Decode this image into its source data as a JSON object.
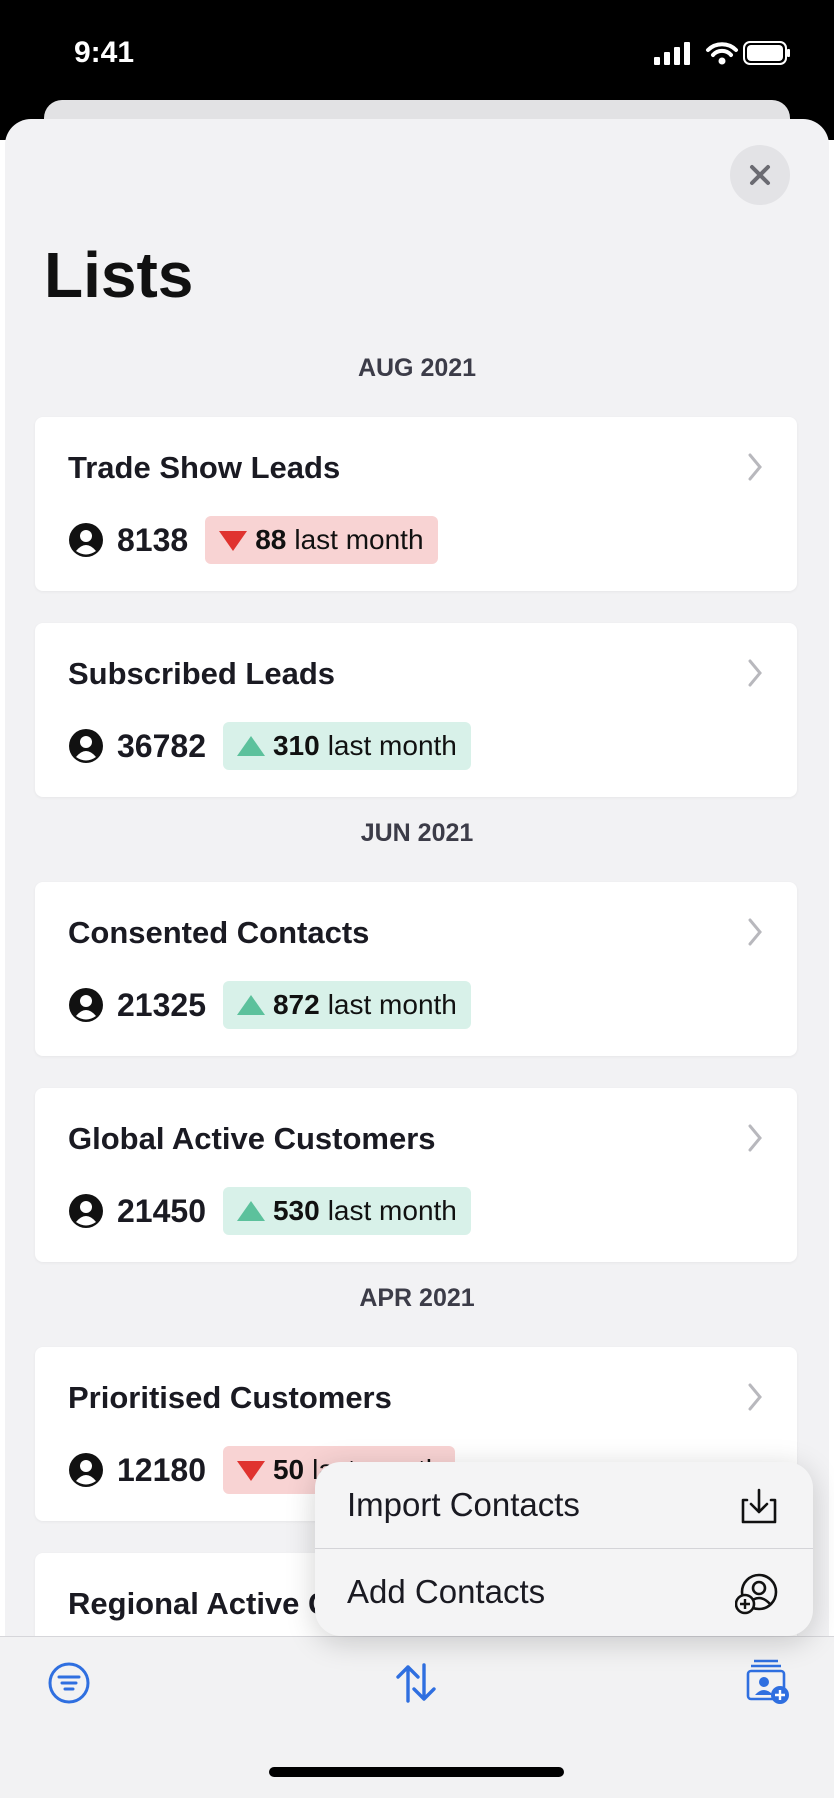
{
  "status_bar": {
    "time": "9:41"
  },
  "title": "Lists",
  "sections": [
    {
      "label": "AUG 2021",
      "items": [
        {
          "name": "Trade Show Leads",
          "count": "8138",
          "change": "88",
          "trend": "down",
          "suffix": "last month"
        },
        {
          "name": "Subscribed Leads",
          "count": "36782",
          "change": "310",
          "trend": "up",
          "suffix": "last month"
        }
      ]
    },
    {
      "label": "JUN 2021",
      "items": [
        {
          "name": "Consented Contacts",
          "count": "21325",
          "change": "872",
          "trend": "up",
          "suffix": "last month"
        },
        {
          "name": "Global Active Customers",
          "count": "21450",
          "change": "530",
          "trend": "up",
          "suffix": "last month"
        }
      ]
    },
    {
      "label": "APR 2021",
      "items": [
        {
          "name": "Prioritised Customers",
          "count": "12180",
          "change": "50",
          "trend": "down",
          "suffix": "last month"
        },
        {
          "name": "Regional Active Customers"
        }
      ]
    }
  ],
  "menu": [
    "Import Contacts",
    "Add Contacts"
  ]
}
